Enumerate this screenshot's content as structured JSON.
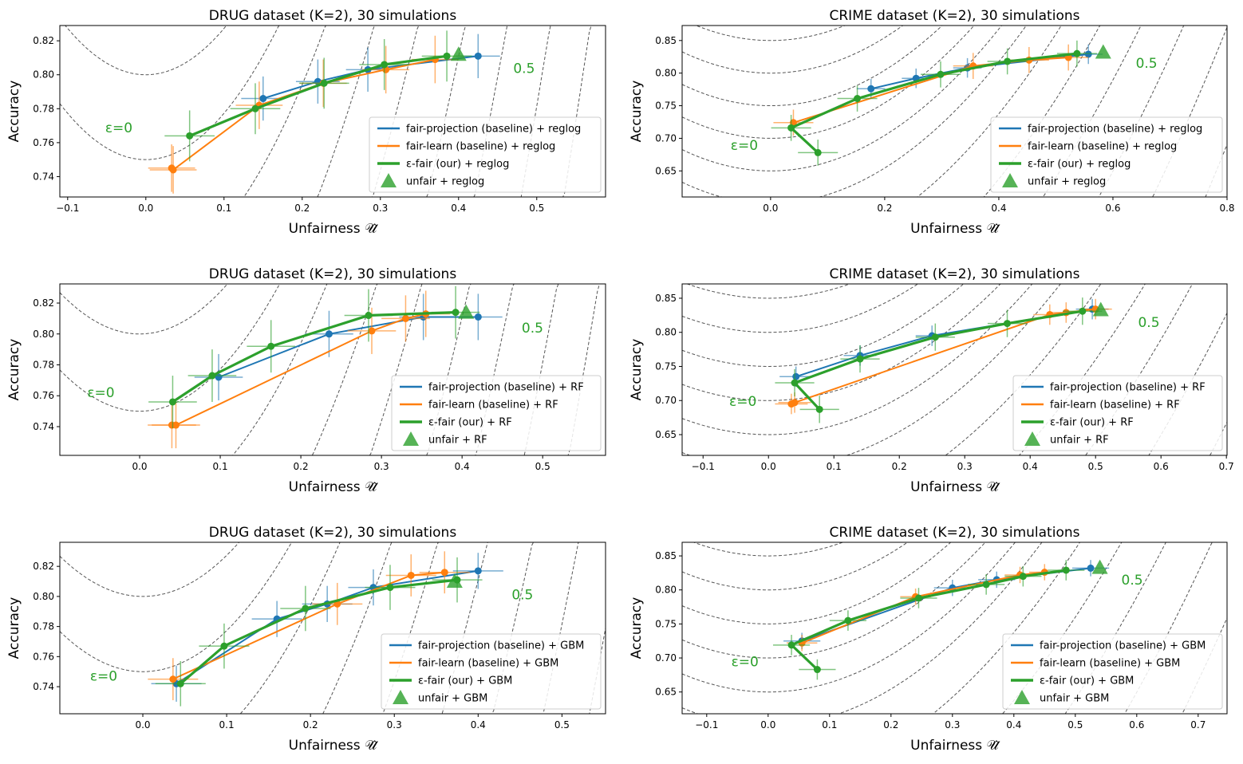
{
  "colors": {
    "fair_projection": "#1f77b4",
    "fair_learn": "#ff7f0e",
    "eps_fair": "#2ca02c",
    "contour": "#555555"
  },
  "chart_data": [
    {
      "type": "scatter",
      "title": "DRUG dataset (K=2), 30 simulations",
      "xlabel": "Unfairness 𝒰̂",
      "ylabel": "Accuracy",
      "xlim": [
        -0.11,
        0.588
      ],
      "ylim": [
        0.728,
        0.829
      ],
      "xticks": [
        "−0.1",
        "0.0",
        "0.1",
        "0.2",
        "0.3",
        "0.4",
        "0.5"
      ],
      "yticks": [
        "0.74",
        "0.76",
        "0.78",
        "0.80",
        "0.82"
      ],
      "annotations": [
        "ε=0",
        "0.5"
      ],
      "legend_position": "bottom-right",
      "contour_curvature": 2.73,
      "contour_levels": [
        0.8,
        0.75,
        0.685,
        0.596,
        0.498,
        0.374,
        0.246,
        0.099,
        -0.053
      ],
      "series": [
        {
          "name": "fair-projection (baseline) + reglog",
          "key": "fair_projection",
          "xerr": 0.028,
          "yerr": 0.013,
          "x": [
            0.15,
            0.22,
            0.284,
            0.425
          ],
          "y": [
            0.786,
            0.796,
            0.803,
            0.811
          ]
        },
        {
          "name": "fair-learn (baseline) + reglog",
          "key": "fair_learn",
          "xerr": 0.03,
          "yerr": 0.014,
          "x": [
            0.033,
            0.035,
            0.145,
            0.227,
            0.307,
            0.37
          ],
          "y": [
            0.745,
            0.744,
            0.782,
            0.795,
            0.803,
            0.809
          ]
        },
        {
          "name": "ε-fair (our) + reglog",
          "key": "eps_fair",
          "xerr": 0.032,
          "yerr": 0.015,
          "x": [
            0.056,
            0.14,
            0.228,
            0.305,
            0.385
          ],
          "y": [
            0.764,
            0.78,
            0.795,
            0.806,
            0.811
          ]
        }
      ],
      "unfair": {
        "name": "unfair + reglog",
        "x": 0.4,
        "y": 0.812
      }
    },
    {
      "type": "scatter",
      "title": "CRIME dataset (K=2), 30 simulations",
      "xlabel": "Unfairness 𝒰̂",
      "ylabel": "Accuracy",
      "xlim": [
        -0.155,
        0.8
      ],
      "ylim": [
        0.61,
        0.873
      ],
      "xticks": [
        "0.0",
        "0.2",
        "0.4",
        "0.6",
        "0.8"
      ],
      "yticks": [
        "0.65",
        "0.70",
        "0.75",
        "0.80",
        "0.85"
      ],
      "annotations": [
        "ε=0",
        "0.5"
      ],
      "legend_position": "bottom-right",
      "contour_curvature": 1.36,
      "contour_levels": [
        0.85,
        0.8,
        0.75,
        0.7,
        0.65,
        0.6,
        0.52,
        0.42,
        0.3,
        0.16,
        0.0,
        -0.18,
        -0.38
      ],
      "series": [
        {
          "name": "fair-projection (baseline) + reglog",
          "key": "fair_projection",
          "xerr": 0.025,
          "yerr": 0.015,
          "x": [
            0.176,
            0.255,
            0.345,
            0.557
          ],
          "y": [
            0.776,
            0.792,
            0.808,
            0.829
          ]
        },
        {
          "name": "fair-learn (baseline) + reglog",
          "key": "fair_learn",
          "xerr": 0.035,
          "yerr": 0.02,
          "x": [
            0.04,
            0.355,
            0.453,
            0.522
          ],
          "y": [
            0.724,
            0.811,
            0.82,
            0.824
          ]
        },
        {
          "name": "ε-fair (our) + reglog",
          "key": "eps_fair",
          "xerr": 0.035,
          "yerr": 0.02,
          "x": [
            0.083,
            0.036,
            0.152,
            0.298,
            0.415,
            0.537
          ],
          "y": [
            0.678,
            0.716,
            0.761,
            0.798,
            0.818,
            0.83
          ]
        }
      ],
      "unfair": {
        "name": "unfair + reglog",
        "x": 0.583,
        "y": 0.832
      }
    },
    {
      "type": "scatter",
      "title": "DRUG dataset (K=2), 30 simulations",
      "xlabel": "Unfairness 𝒰̂",
      "ylabel": "Accuracy",
      "xlim": [
        -0.099,
        0.578
      ],
      "ylim": [
        0.7214,
        0.8324
      ],
      "xticks": [
        "0.0",
        "0.1",
        "0.2",
        "0.3",
        "0.4",
        "0.5"
      ],
      "yticks": [
        "0.74",
        "0.76",
        "0.78",
        "0.80",
        "0.82"
      ],
      "annotations": [
        "ε=0",
        "0.5"
      ],
      "legend_position": "bottom-right",
      "contour_curvature": 2.73,
      "contour_levels": [
        0.8,
        0.75,
        0.685,
        0.596,
        0.498,
        0.374,
        0.246,
        0.099,
        -0.053
      ],
      "series": [
        {
          "name": "fair-projection (baseline) + RF",
          "key": "fair_projection",
          "xerr": 0.03,
          "yerr": 0.015,
          "x": [
            0.098,
            0.235,
            0.352,
            0.42
          ],
          "y": [
            0.772,
            0.8,
            0.811,
            0.811
          ]
        },
        {
          "name": "fair-learn (baseline) + RF",
          "key": "fair_learn",
          "xerr": 0.03,
          "yerr": 0.015,
          "x": [
            0.04,
            0.045,
            0.288,
            0.33,
            0.355
          ],
          "y": [
            0.741,
            0.741,
            0.802,
            0.81,
            0.813
          ]
        },
        {
          "name": "ε-fair (our) + RF",
          "key": "eps_fair",
          "xerr": 0.03,
          "yerr": 0.017,
          "x": [
            0.041,
            0.09,
            0.163,
            0.284,
            0.392
          ],
          "y": [
            0.756,
            0.773,
            0.792,
            0.812,
            0.814
          ]
        }
      ],
      "unfair": {
        "name": "unfair + RF",
        "x": 0.405,
        "y": 0.814
      }
    },
    {
      "type": "scatter",
      "title": "CRIME dataset (K=2), 30 simulations",
      "xlabel": "Unfairness 𝒰̂",
      "ylabel": "Accuracy",
      "xlim": [
        -0.132,
        0.701
      ],
      "ylim": [
        0.6196,
        0.871
      ],
      "xticks": [
        "−0.1",
        "0.0",
        "0.1",
        "0.2",
        "0.3",
        "0.4",
        "0.5",
        "0.6",
        "0.7"
      ],
      "yticks": [
        "0.65",
        "0.70",
        "0.75",
        "0.80",
        "0.85"
      ],
      "annotations": [
        "ε=0",
        "0.5"
      ],
      "legend_position": "bottom-right",
      "contour_curvature": 1.36,
      "contour_levels": [
        0.85,
        0.8,
        0.75,
        0.7,
        0.65,
        0.6,
        0.52,
        0.42,
        0.3,
        0.16,
        0.0,
        -0.18,
        -0.38
      ],
      "series": [
        {
          "name": "fair-projection (baseline) + RF",
          "key": "fair_projection",
          "xerr": 0.025,
          "yerr": 0.015,
          "x": [
            0.042,
            0.14,
            0.25,
            0.495
          ],
          "y": [
            0.735,
            0.766,
            0.795,
            0.834
          ]
        },
        {
          "name": "fair-learn (baseline) + RF",
          "key": "fair_learn",
          "xerr": 0.025,
          "yerr": 0.015,
          "x": [
            0.035,
            0.04,
            0.43,
            0.455,
            0.5
          ],
          "y": [
            0.695,
            0.697,
            0.826,
            0.829,
            0.834
          ]
        },
        {
          "name": "ε-fair (our) + RF",
          "key": "eps_fair",
          "xerr": 0.03,
          "yerr": 0.02,
          "x": [
            0.078,
            0.04,
            0.14,
            0.255,
            0.365,
            0.48
          ],
          "y": [
            0.687,
            0.726,
            0.761,
            0.793,
            0.813,
            0.831
          ]
        }
      ],
      "unfair": {
        "name": "unfair + RF",
        "x": 0.508,
        "y": 0.833
      }
    },
    {
      "type": "scatter",
      "title": "DRUG dataset (K=2), 30 simulations",
      "xlabel": "Unfairness 𝒰̂",
      "ylabel": "Accuracy",
      "xlim": [
        -0.099,
        0.552
      ],
      "ylim": [
        0.722,
        0.836
      ],
      "xticks": [
        "0.0",
        "0.1",
        "0.2",
        "0.3",
        "0.4",
        "0.5"
      ],
      "yticks": [
        "0.74",
        "0.76",
        "0.78",
        "0.80",
        "0.82"
      ],
      "annotations": [
        "ε=0",
        "0.5"
      ],
      "legend_position": "bottom-right",
      "contour_curvature": 2.73,
      "contour_levels": [
        0.8,
        0.75,
        0.685,
        0.596,
        0.498,
        0.374,
        0.246,
        0.099,
        -0.053
      ],
      "series": [
        {
          "name": "fair-projection (baseline) + GBM",
          "key": "fair_projection",
          "xerr": 0.03,
          "yerr": 0.012,
          "x": [
            0.04,
            0.16,
            0.22,
            0.275,
            0.4
          ],
          "y": [
            0.742,
            0.785,
            0.795,
            0.806,
            0.817
          ]
        },
        {
          "name": "fair-learn (baseline) + GBM",
          "key": "fair_learn",
          "xerr": 0.03,
          "yerr": 0.014,
          "x": [
            0.036,
            0.232,
            0.32,
            0.36
          ],
          "y": [
            0.745,
            0.795,
            0.814,
            0.816
          ]
        },
        {
          "name": "ε-fair (our) + GBM",
          "key": "eps_fair",
          "xerr": 0.03,
          "yerr": 0.015,
          "x": [
            0.045,
            0.097,
            0.194,
            0.295,
            0.375
          ],
          "y": [
            0.742,
            0.767,
            0.792,
            0.806,
            0.811
          ]
        }
      ],
      "unfair": {
        "name": "unfair + GBM",
        "x": 0.372,
        "y": 0.81
      }
    },
    {
      "type": "scatter",
      "title": "CRIME dataset (K=2), 30 simulations",
      "xlabel": "Unfairness 𝒰̂",
      "ylabel": "Accuracy",
      "xlim": [
        -0.14,
        0.747
      ],
      "ylim": [
        0.618,
        0.87
      ],
      "xticks": [
        "−0.1",
        "0.0",
        "0.1",
        "0.2",
        "0.3",
        "0.4",
        "0.5",
        "0.6",
        "0.7"
      ],
      "yticks": [
        "0.65",
        "0.70",
        "0.75",
        "0.80",
        "0.85"
      ],
      "annotations": [
        "ε=0",
        "0.5"
      ],
      "legend_position": "bottom-right",
      "contour_curvature": 1.36,
      "contour_levels": [
        0.85,
        0.8,
        0.75,
        0.7,
        0.65,
        0.6,
        0.52,
        0.42,
        0.3,
        0.16,
        0.0,
        -0.18,
        -0.38
      ],
      "series": [
        {
          "name": "fair-projection (baseline) + GBM",
          "key": "fair_projection",
          "xerr": 0.03,
          "yerr": 0.012,
          "x": [
            0.055,
            0.3,
            0.372,
            0.525
          ],
          "y": [
            0.725,
            0.803,
            0.815,
            0.832
          ]
        },
        {
          "name": "fair-learn (baseline) + GBM",
          "key": "fair_learn",
          "xerr": 0.025,
          "yerr": 0.012,
          "x": [
            0.055,
            0.24,
            0.41,
            0.45
          ],
          "y": [
            0.722,
            0.79,
            0.822,
            0.826
          ]
        },
        {
          "name": "ε-fair (our) + GBM",
          "key": "eps_fair",
          "xerr": 0.03,
          "yerr": 0.015,
          "x": [
            0.08,
            0.038,
            0.13,
            0.245,
            0.355,
            0.415,
            0.485
          ],
          "y": [
            0.683,
            0.719,
            0.755,
            0.788,
            0.808,
            0.82,
            0.829
          ]
        }
      ],
      "unfair": {
        "name": "unfair + GBM",
        "x": 0.54,
        "y": 0.833
      }
    }
  ]
}
